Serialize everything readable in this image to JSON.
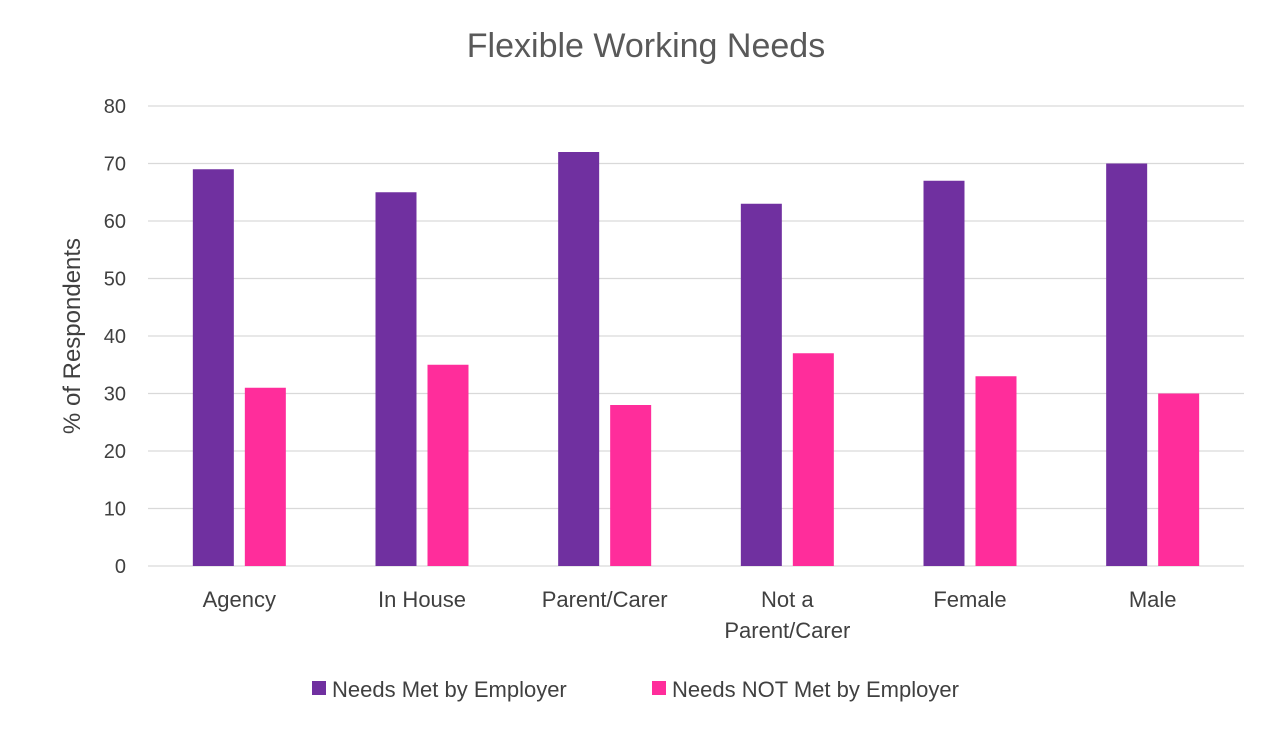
{
  "chart_data": {
    "type": "bar",
    "title": "Flexible Working Needs",
    "xlabel": "",
    "ylabel": "% of Respondents",
    "ylim": [
      0,
      80
    ],
    "yticks": [
      0,
      10,
      20,
      30,
      40,
      50,
      60,
      70,
      80
    ],
    "categories": [
      "Agency",
      "In House",
      "Parent/Carer",
      "Not a Parent/Carer",
      "Female",
      "Male"
    ],
    "category_lines": [
      [
        "Agency"
      ],
      [
        "In House"
      ],
      [
        "Parent/Carer"
      ],
      [
        "Not a",
        "Parent/Carer"
      ],
      [
        "Female"
      ],
      [
        "Male"
      ]
    ],
    "series": [
      {
        "name": "Needs Met by Employer",
        "color": "#7030a0",
        "values": [
          69,
          65,
          72,
          63,
          67,
          70
        ]
      },
      {
        "name": "Needs NOT Met by Employer",
        "color": "#ff2d9b",
        "values": [
          31,
          35,
          28,
          37,
          33,
          30
        ]
      }
    ],
    "grid": true,
    "legend": "bottom"
  }
}
